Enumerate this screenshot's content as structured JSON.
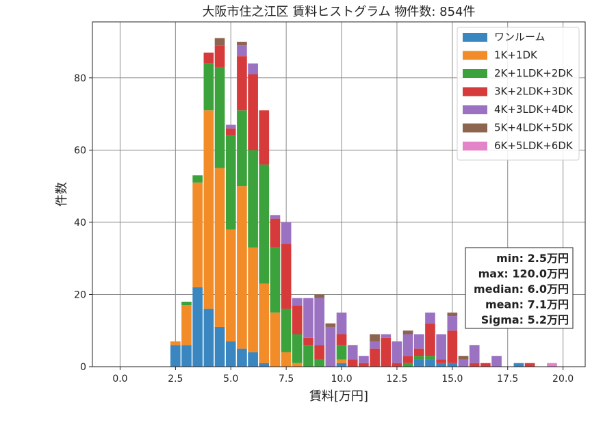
{
  "chart_data": {
    "type": "bar",
    "stacked": true,
    "title": "大阪市住之江区 賃料ヒストグラム  物件数: 854件",
    "xlabel": "賃料[万円]",
    "ylabel": "件数",
    "xlim": [
      -1.25,
      21.0
    ],
    "ylim": [
      0,
      95.5
    ],
    "grid": true,
    "legend_position": "top-right",
    "bin_width": 0.5,
    "x_ticks": [
      0.0,
      2.5,
      5.0,
      7.5,
      10.0,
      12.5,
      15.0,
      17.5,
      20.0
    ],
    "x_tick_labels": [
      "0.0",
      "2.5",
      "5.0",
      "7.5",
      "10.0",
      "12.5",
      "15.0",
      "17.5",
      "20.0"
    ],
    "y_ticks": [
      0,
      20,
      40,
      60,
      80
    ],
    "y_tick_labels": [
      "0",
      "20",
      "40",
      "60",
      "80"
    ],
    "x": [
      2.5,
      3.0,
      3.5,
      4.0,
      4.5,
      5.0,
      5.5,
      6.0,
      6.5,
      7.0,
      7.5,
      8.0,
      8.5,
      9.0,
      9.5,
      10.0,
      10.5,
      11.0,
      11.5,
      12.0,
      12.5,
      13.0,
      13.5,
      14.0,
      14.5,
      15.0,
      15.5,
      16.0,
      16.5,
      17.0,
      17.5,
      18.0,
      18.5,
      19.0,
      19.5
    ],
    "series": [
      {
        "name": "ワンルーム",
        "color": "#3a86c0",
        "values": [
          6,
          6,
          22,
          16,
          11,
          7,
          5,
          4,
          1,
          0,
          0,
          0,
          0,
          0,
          0,
          1,
          0,
          0,
          0,
          0,
          0,
          0,
          2,
          2,
          1,
          1,
          0,
          0,
          0,
          0,
          0,
          1,
          0,
          0,
          0
        ]
      },
      {
        "name": "1K+1DK",
        "color": "#f28c28",
        "values": [
          1,
          11,
          29,
          55,
          44,
          31,
          45,
          29,
          22,
          15,
          4,
          1,
          0,
          0,
          0,
          1,
          0,
          0,
          0,
          0,
          0,
          0,
          0,
          0,
          0,
          0,
          0,
          0,
          0,
          0,
          0,
          0,
          0,
          0,
          0
        ]
      },
      {
        "name": "2K+1LDK+2DK",
        "color": "#3ca23c",
        "values": [
          0,
          1,
          2,
          13,
          28,
          26,
          21,
          27,
          33,
          18,
          12,
          8,
          6,
          2,
          0,
          4,
          0,
          0,
          0,
          0,
          0,
          1,
          1,
          1,
          0,
          0,
          0,
          0,
          0,
          0,
          0,
          0,
          0,
          0,
          0
        ]
      },
      {
        "name": "3K+2LDK+3DK",
        "color": "#d63a3a",
        "values": [
          0,
          0,
          0,
          3,
          6,
          2,
          15,
          21,
          15,
          8,
          18,
          8,
          2,
          4,
          0,
          3,
          2,
          1,
          5,
          8,
          1,
          2,
          2,
          9,
          1,
          9,
          0,
          1,
          1,
          0,
          0,
          0,
          1,
          0,
          0
        ]
      },
      {
        "name": "4K+3LDK+4DK",
        "color": "#9b72c2",
        "values": [
          0,
          0,
          0,
          0,
          0,
          1,
          3,
          3,
          0,
          1,
          6,
          2,
          11,
          13,
          11,
          6,
          4,
          2,
          2,
          1,
          6,
          6,
          4,
          3,
          7,
          4,
          2,
          5,
          0,
          3,
          0,
          0,
          0,
          0,
          0
        ]
      },
      {
        "name": "5K+4LDK+5DK",
        "color": "#8c6450",
        "values": [
          0,
          0,
          0,
          0,
          2,
          0,
          1,
          0,
          0,
          0,
          0,
          0,
          0,
          1,
          1,
          0,
          0,
          0,
          2,
          0,
          0,
          1,
          0,
          0,
          0,
          1,
          1,
          0,
          0,
          0,
          0,
          0,
          0,
          0,
          0
        ]
      },
      {
        "name": "6K+5LDK+6DK",
        "color": "#e384c8",
        "values": [
          0,
          0,
          0,
          0,
          0,
          0,
          0,
          0,
          0,
          0,
          0,
          0,
          0,
          0,
          0,
          0,
          0,
          0,
          0,
          0,
          0,
          0,
          0,
          0,
          0,
          0,
          0,
          0,
          0,
          0,
          0,
          0,
          0,
          0,
          1
        ]
      }
    ],
    "stats": [
      "min: 2.5万円",
      "max: 120.0万円",
      "median: 6.0万円",
      "mean: 7.1万円",
      "Sigma: 5.2万円"
    ]
  }
}
